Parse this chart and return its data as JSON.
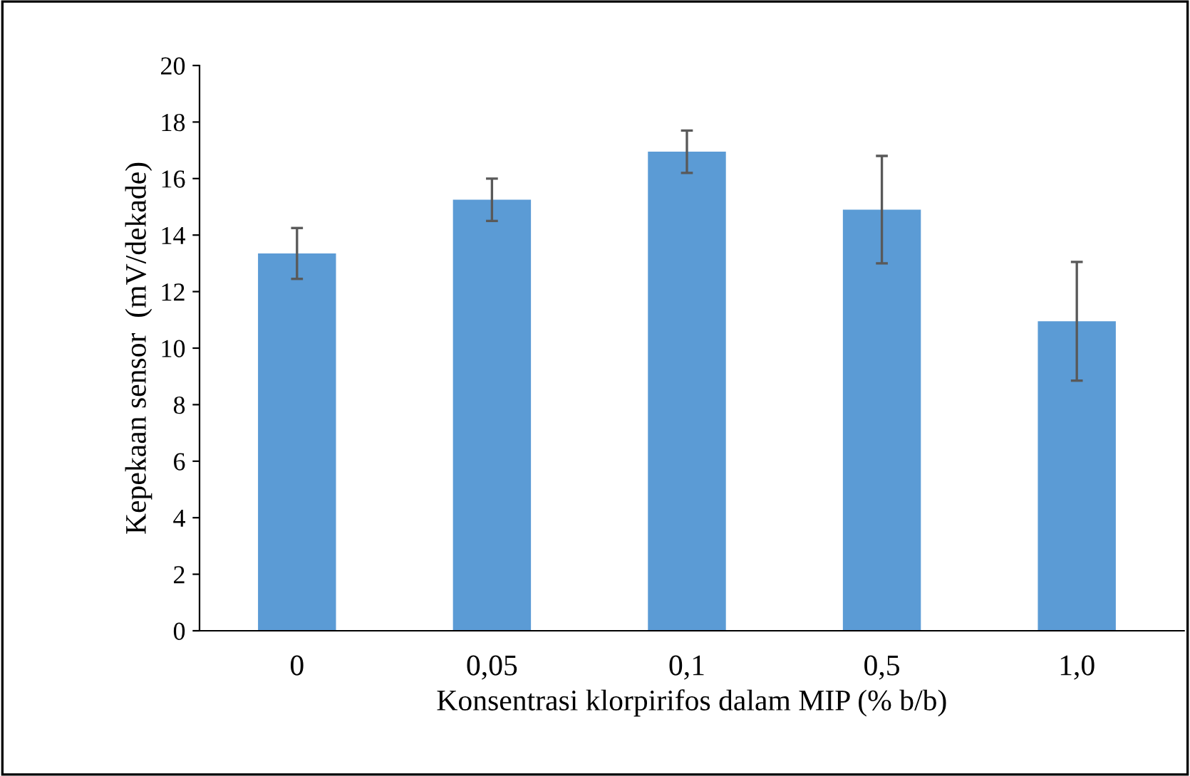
{
  "chart_data": {
    "type": "bar",
    "xlabel": "Konsentrasi klorpirifos dalam MIP (% b/b)",
    "ylabel": "Kepekaan sensor  (mV/dekade)",
    "categories": [
      "0",
      "0,05",
      "0,1",
      "0,5",
      "1,0"
    ],
    "values": [
      13.35,
      15.25,
      16.95,
      14.9,
      10.95
    ],
    "errors": [
      0.9,
      0.75,
      0.75,
      1.9,
      2.1
    ],
    "color": "#5b9bd5",
    "ylim": [
      0,
      20
    ],
    "yticks": [
      0,
      2,
      4,
      6,
      8,
      10,
      12,
      14,
      16,
      18,
      20
    ],
    "grid": false
  }
}
